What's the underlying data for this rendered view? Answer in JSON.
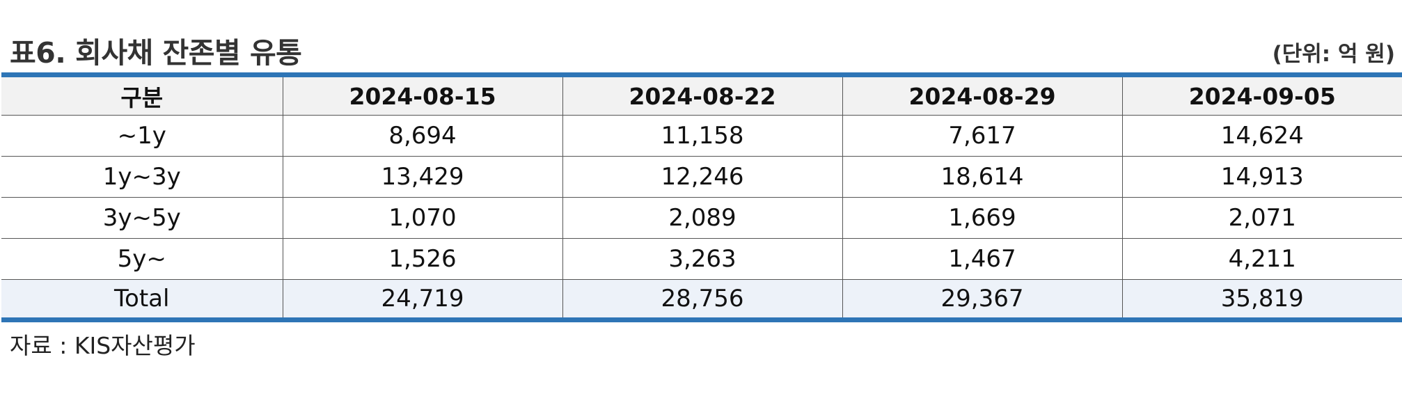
{
  "title": "표6. 회사채 잔존별 유통",
  "unit": "(단위: 억 원)",
  "table": {
    "header": [
      "구분",
      "2024-08-15",
      "2024-08-22",
      "2024-08-29",
      "2024-09-05"
    ],
    "rows": [
      [
        "~1y",
        "8,694",
        "11,158",
        "7,617",
        "14,624"
      ],
      [
        "1y~3y",
        "13,429",
        "12,246",
        "18,614",
        "14,913"
      ],
      [
        "3y~5y",
        "1,070",
        "2,089",
        "1,669",
        "2,071"
      ],
      [
        "5y~",
        "1,526",
        "3,263",
        "1,467",
        "4,211"
      ]
    ],
    "total": [
      "Total",
      "24,719",
      "28,756",
      "29,367",
      "35,819"
    ]
  },
  "source": "자료 : KIS자산평가",
  "colors": {
    "accent_border": "#2e75b6",
    "header_bg": "#f2f2f2",
    "total_bg": "#edf2f9"
  }
}
